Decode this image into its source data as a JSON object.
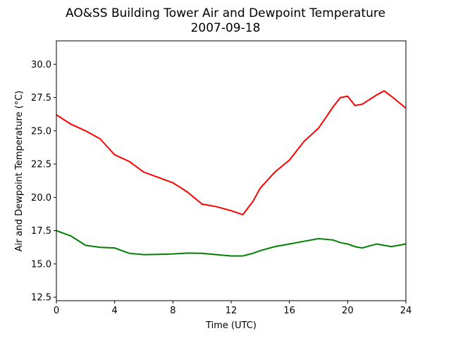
{
  "chart_data": {
    "type": "line",
    "title": "AO&SS Building Tower Air and Dewpoint Temperature",
    "subtitle": "2007-09-18",
    "x_label": "Time (UTC)",
    "y_label": "Air and Dewpoint Temperature (°C)",
    "x": [
      0,
      1,
      2,
      3,
      4,
      5,
      6,
      7,
      8,
      9,
      10,
      11,
      12,
      12.8,
      13.5,
      14,
      15,
      16,
      17,
      18,
      19,
      19.5,
      20,
      20.5,
      21,
      22,
      22.5,
      23,
      24
    ],
    "series": [
      {
        "color": "#ff0000",
        "values": [
          26.2,
          25.5,
          25.0,
          24.4,
          23.2,
          22.7,
          21.9,
          21.5,
          21.1,
          20.4,
          19.5,
          19.3,
          19.0,
          18.7,
          19.7,
          20.7,
          21.9,
          22.8,
          24.2,
          25.2,
          26.8,
          27.5,
          27.6,
          26.9,
          27.0,
          27.7,
          28.0,
          27.6,
          26.7
        ]
      },
      {
        "color": "#008000",
        "values": [
          17.5,
          17.1,
          16.4,
          16.25,
          16.2,
          15.8,
          15.7,
          15.72,
          15.75,
          15.82,
          15.8,
          15.7,
          15.6,
          15.6,
          15.8,
          16.0,
          16.3,
          16.5,
          16.7,
          16.9,
          16.8,
          16.6,
          16.5,
          16.3,
          16.2,
          16.5,
          16.4,
          16.3,
          16.5
        ]
      }
    ],
    "xlim": [
      0,
      24
    ],
    "xticks": [
      0,
      4,
      8,
      12,
      16,
      20,
      24
    ],
    "ylim": [
      12.24,
      31.76
    ],
    "yticks": [
      {
        "value": 12.5,
        "label": "12.5"
      },
      {
        "value": 15,
        "label": "15.0"
      },
      {
        "value": 17.5,
        "label": "17.5"
      },
      {
        "value": 20,
        "label": "20.0"
      },
      {
        "value": 22.5,
        "label": "22.5"
      },
      {
        "value": 25,
        "label": "25.0"
      },
      {
        "value": 27.5,
        "label": "27.5"
      },
      {
        "value": 30,
        "label": "30.0"
      }
    ],
    "grid": false
  }
}
